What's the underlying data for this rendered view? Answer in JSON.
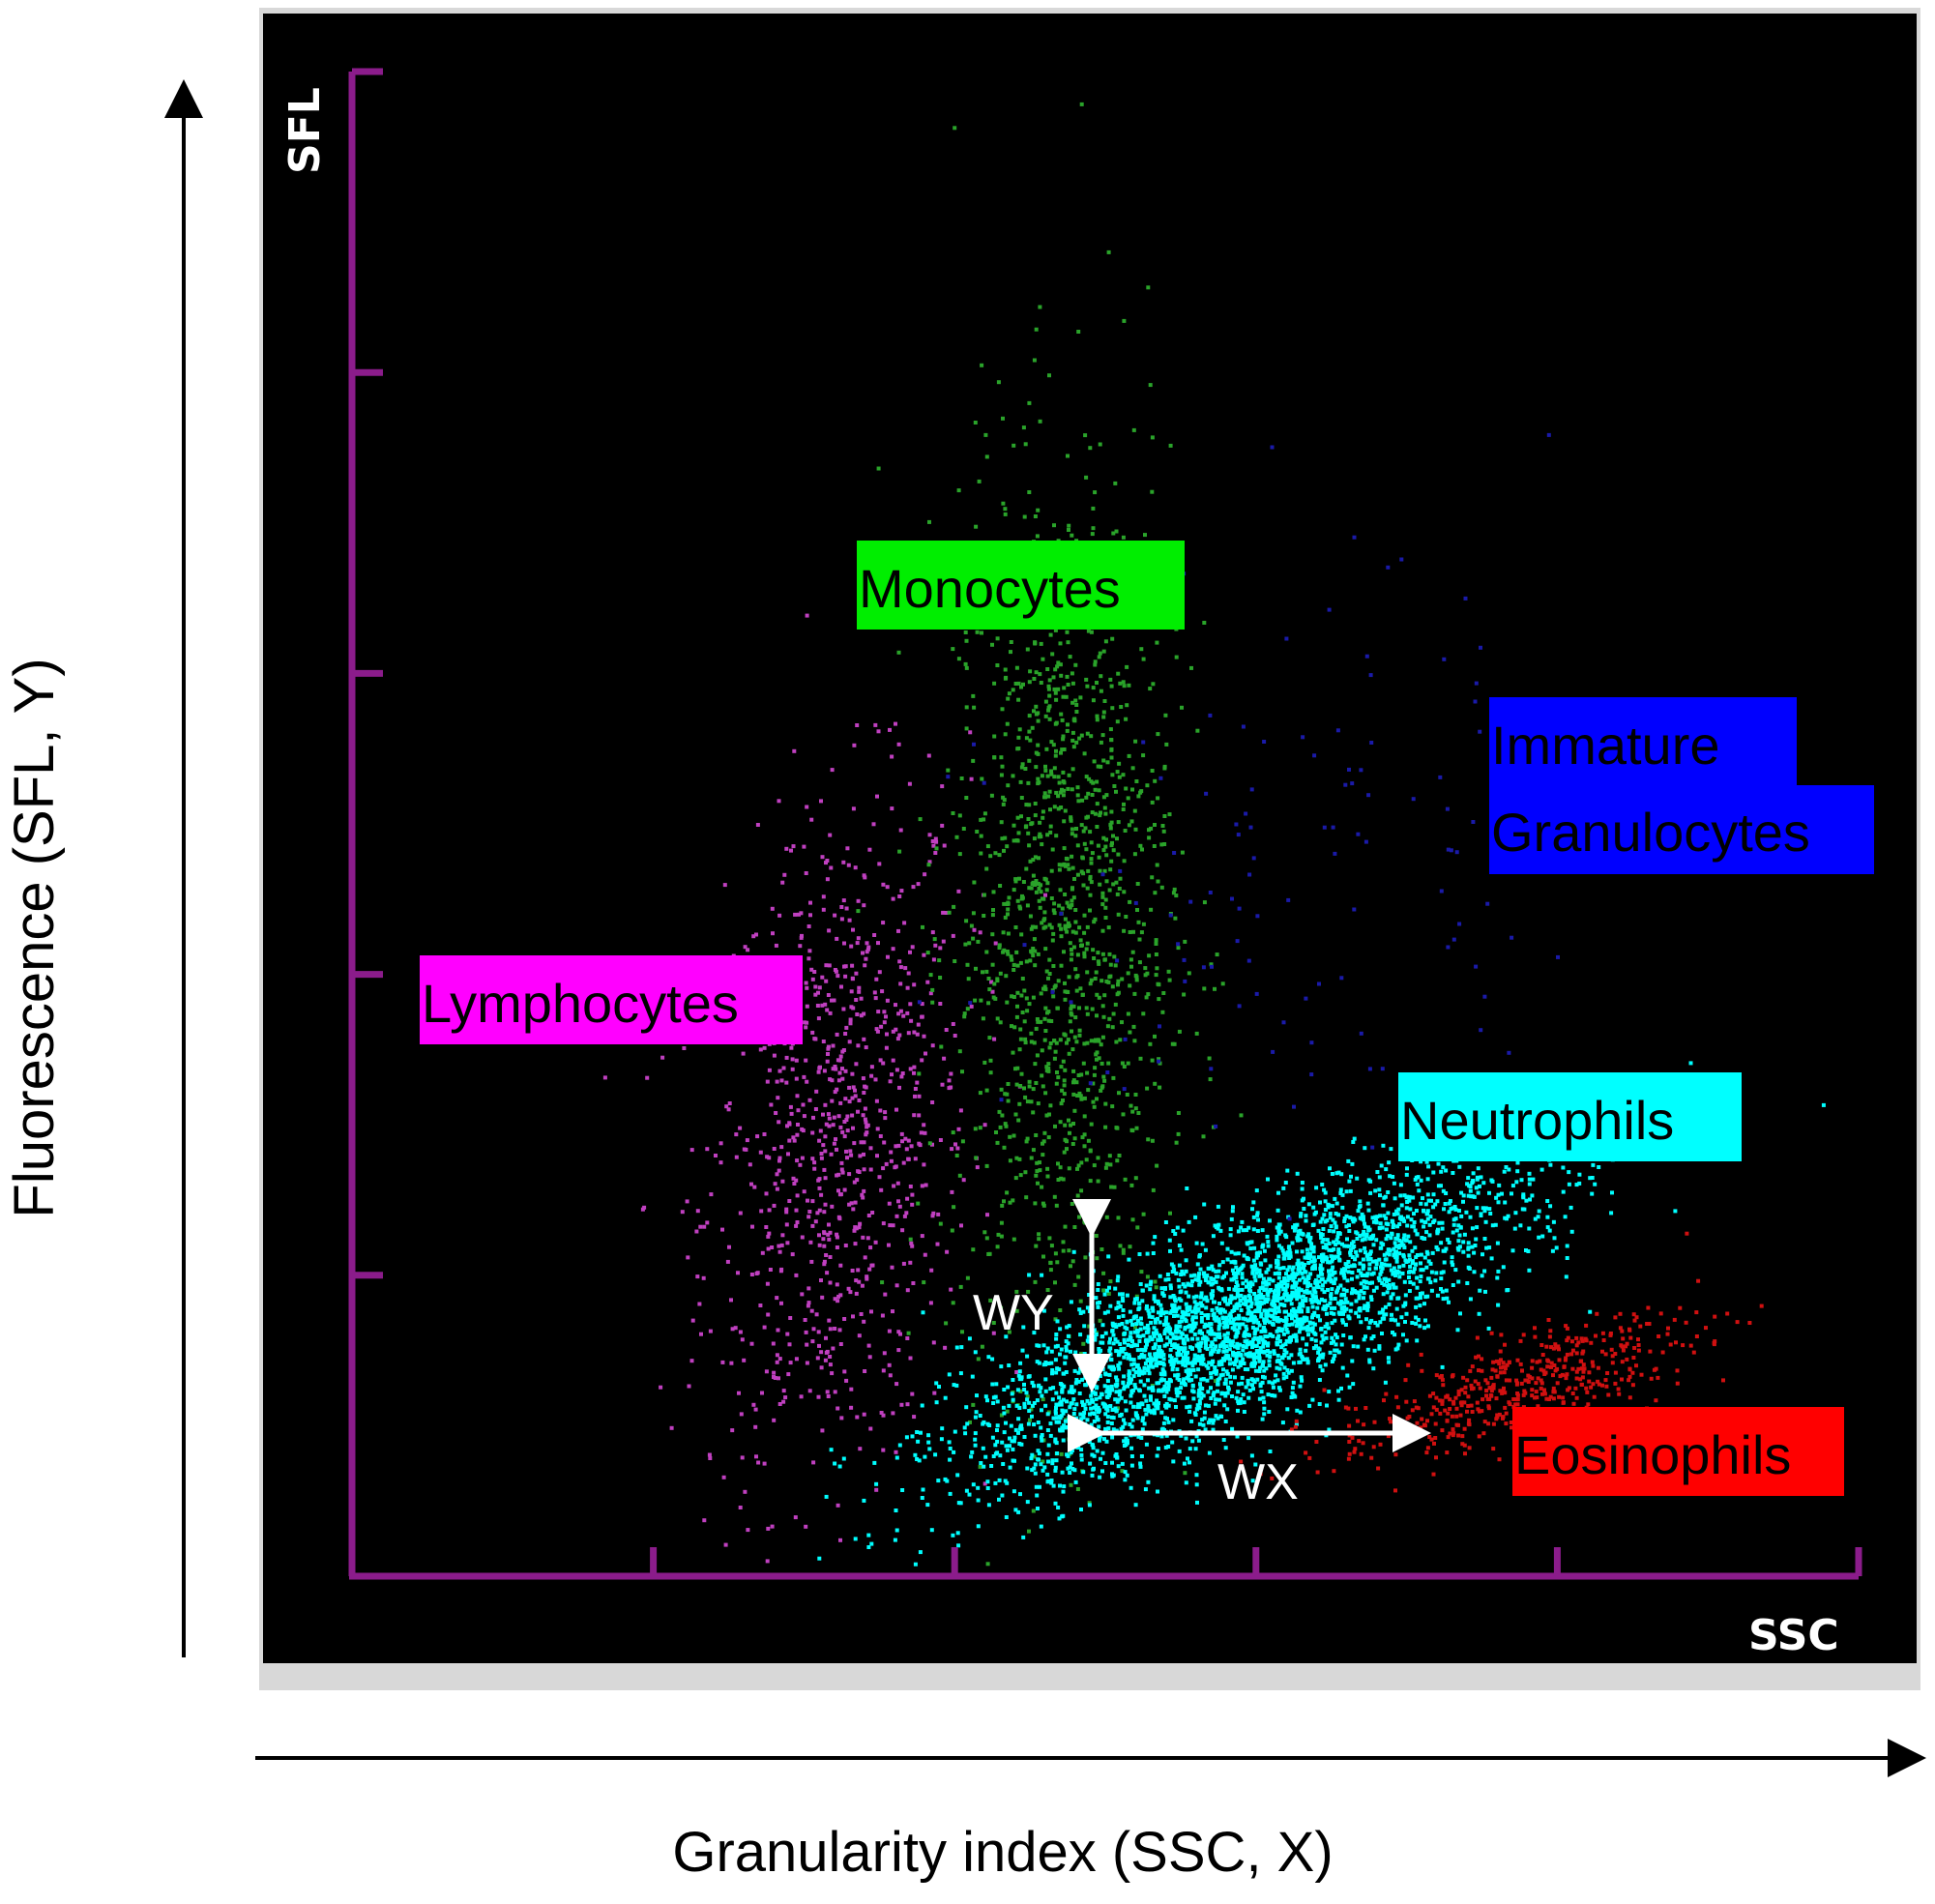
{
  "chart_data": {
    "type": "scatter",
    "title": "",
    "xlabel": "Granularity index (SSC, X)",
    "ylabel": "Fluorescence (SFL, Y)",
    "plot_axis_x": "SSC",
    "plot_axis_y": "SFL",
    "xlim": [
      0,
      5
    ],
    "ylim": [
      0,
      5
    ],
    "grid": false,
    "background": "#000000",
    "axis_color": "#8b1c8b",
    "x_ticks": [
      0,
      1,
      2,
      3,
      4,
      5
    ],
    "y_ticks": [
      0,
      1,
      2,
      3,
      4,
      5
    ],
    "populations": [
      {
        "name": "Lymphocytes",
        "color": "#c040c0",
        "label_bg": "#ff00ff",
        "center": [
          1.6,
          1.45
        ],
        "spread": [
          0.22,
          0.55
        ],
        "tilt": 0.55,
        "count": 900
      },
      {
        "name": "Monocytes",
        "color": "#2aa32a",
        "label_bg": "#00ee00",
        "center": [
          2.35,
          2.2
        ],
        "spread": [
          0.18,
          0.75
        ],
        "tilt": 0.15,
        "count": 1400
      },
      {
        "name": "Neutrophils",
        "color": "#00ffff",
        "label_bg": "#00ffff",
        "center": [
          2.95,
          0.85
        ],
        "spread": [
          0.45,
          0.16
        ],
        "tilt": 0.45,
        "count": 3500
      },
      {
        "name": "Eosinophils",
        "color": "#d01010",
        "label_bg": "#ff0000",
        "center": [
          3.85,
          0.63
        ],
        "spread": [
          0.3,
          0.08
        ],
        "tilt": 0.3,
        "count": 500
      },
      {
        "name": "Immature Granulocytes",
        "color": "#1a1aa8",
        "label_bg": "#0000ff",
        "center": [
          3.1,
          2.4
        ],
        "spread": [
          0.45,
          0.55
        ],
        "tilt": 0.1,
        "count": 120
      }
    ],
    "width_markers": {
      "wy": "WY",
      "wx": "WX"
    }
  },
  "labels": {
    "lymphocytes": "Lymphocytes",
    "monocytes": "Monocytes",
    "neutrophils": "Neutrophils",
    "eosinophils": "Eosinophils",
    "immature_line1": "Immature",
    "immature_line2": "Granulocytes"
  }
}
